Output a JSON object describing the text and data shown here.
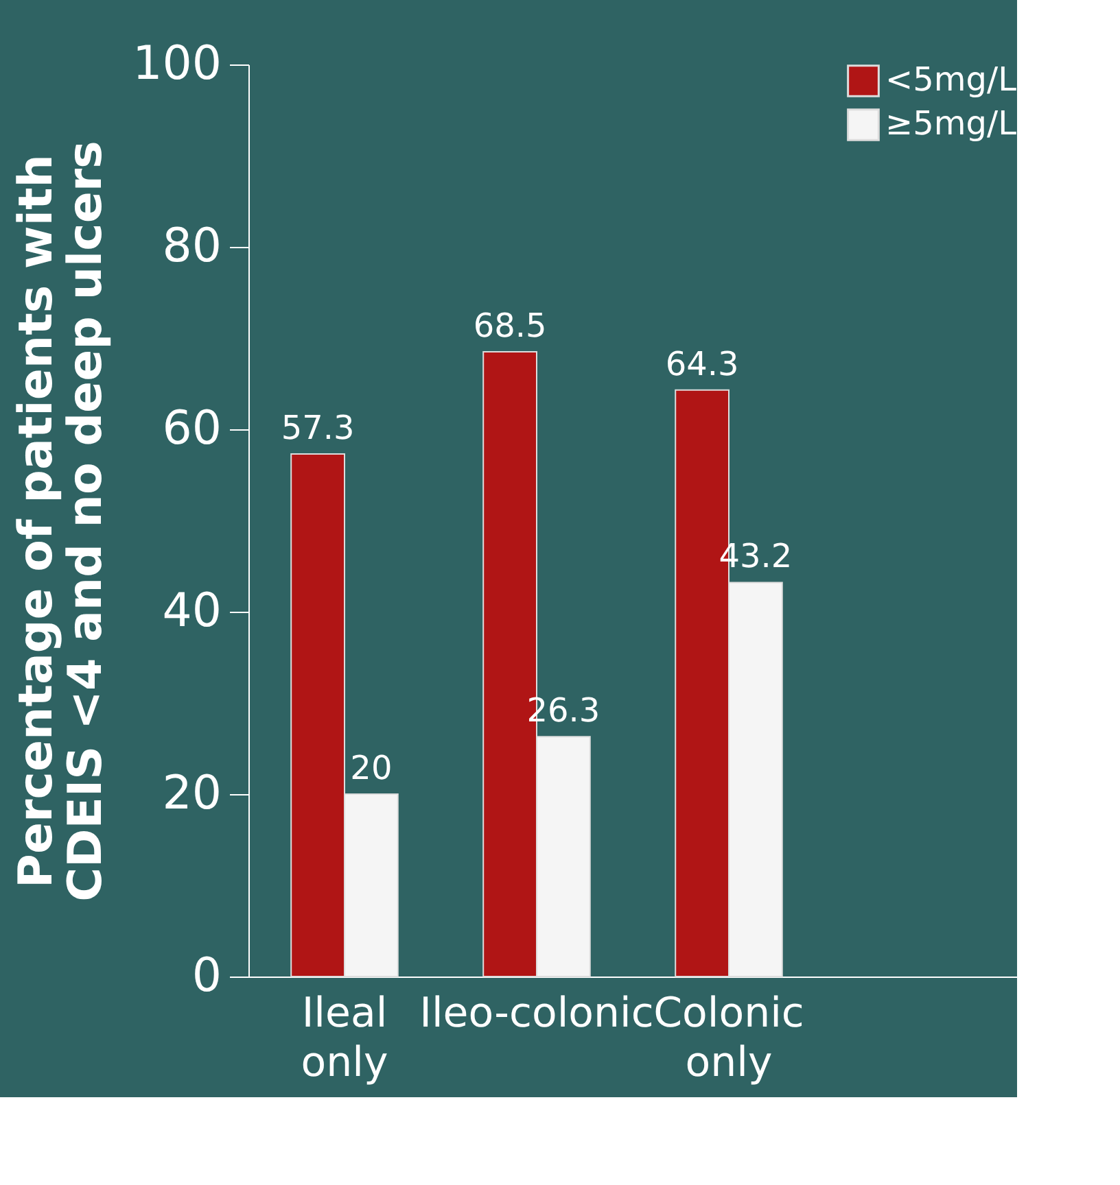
{
  "chart_data": {
    "type": "bar",
    "ylabel": "Percentage of patients with CDEIS <4 and no deep ulcers",
    "categories": [
      "Ileal only",
      "Ileo-colonic",
      "Colonic only",
      null
    ],
    "series": [
      {
        "name": "<5mg/L",
        "color": "#b01515",
        "values": [
          57.3,
          68.5,
          64.3,
          null
        ]
      },
      {
        "name": "≥5mg/L",
        "color": "#f5f5f5",
        "values": [
          20,
          26.3,
          43.2,
          null
        ]
      }
    ],
    "ylim": [
      0,
      100
    ],
    "yticks": [
      0,
      20,
      40,
      60,
      80,
      100
    ],
    "grid": false,
    "legend": "top right",
    "data_labels": true
  }
}
